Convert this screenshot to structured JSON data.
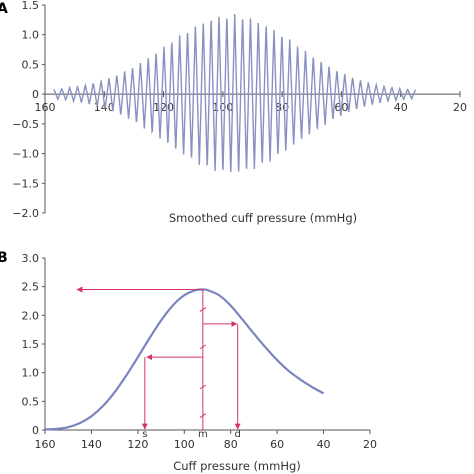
{
  "colors": {
    "curve": "#8892c2",
    "envelope": "#7a85c0",
    "annotation": "#d6336c",
    "axis": "#555555"
  },
  "chart_data": [
    {
      "panel": "A",
      "type": "line",
      "xlabel": "Smoothed cuff pressure (mmHg)",
      "ylabel": "",
      "xlim": [
        160,
        20
      ],
      "ylim": [
        -2.0,
        1.5
      ],
      "xticks": [
        160,
        140,
        120,
        100,
        80,
        60,
        40,
        20
      ],
      "yticks": [
        1.5,
        1.0,
        0.5,
        0,
        -0.5,
        -1.0,
        -1.5,
        -2.0
      ],
      "ytick_labels": [
        "1.5",
        "1.0",
        "0.5",
        "0",
        "−0.5",
        "−1.0",
        "−1.5",
        "−2.0"
      ],
      "signal": {
        "start": 157,
        "end": 35,
        "peak_x": 97,
        "peak_amplitude": 1.3,
        "cycles": 46
      }
    },
    {
      "panel": "B",
      "type": "line",
      "xlabel": "Cuff pressure (mmHg)",
      "ylabel": "",
      "xlim": [
        160,
        20
      ],
      "ylim": [
        0,
        3.0
      ],
      "xticks": [
        160,
        140,
        120,
        100,
        80,
        60,
        40,
        20
      ],
      "yticks": [
        0,
        0.5,
        1.0,
        1.5,
        2.0,
        2.5,
        3.0
      ],
      "ytick_labels": [
        "0",
        "0.5",
        "1.0",
        "1.5",
        "2.0",
        "2.5",
        "3.0"
      ],
      "series": [
        {
          "x": [
            160,
            155,
            150,
            145,
            140,
            135,
            130,
            125,
            120,
            115,
            110,
            105,
            100,
            95,
            92,
            90,
            85,
            80,
            75,
            70,
            65,
            60,
            55,
            50,
            45,
            40
          ],
          "y": [
            0.01,
            0.02,
            0.05,
            0.12,
            0.24,
            0.42,
            0.66,
            0.95,
            1.27,
            1.6,
            1.91,
            2.17,
            2.35,
            2.44,
            2.45,
            2.44,
            2.35,
            2.17,
            1.93,
            1.68,
            1.44,
            1.22,
            1.03,
            0.88,
            0.75,
            0.64
          ]
        }
      ],
      "markers": [
        {
          "label": "s",
          "x": 117,
          "level": 1.27
        },
        {
          "label": "m",
          "x": 92,
          "level": 2.45
        },
        {
          "label": "d",
          "x": 77,
          "level": 1.85
        }
      ]
    }
  ],
  "panels": {
    "a": "A",
    "b": "B"
  }
}
